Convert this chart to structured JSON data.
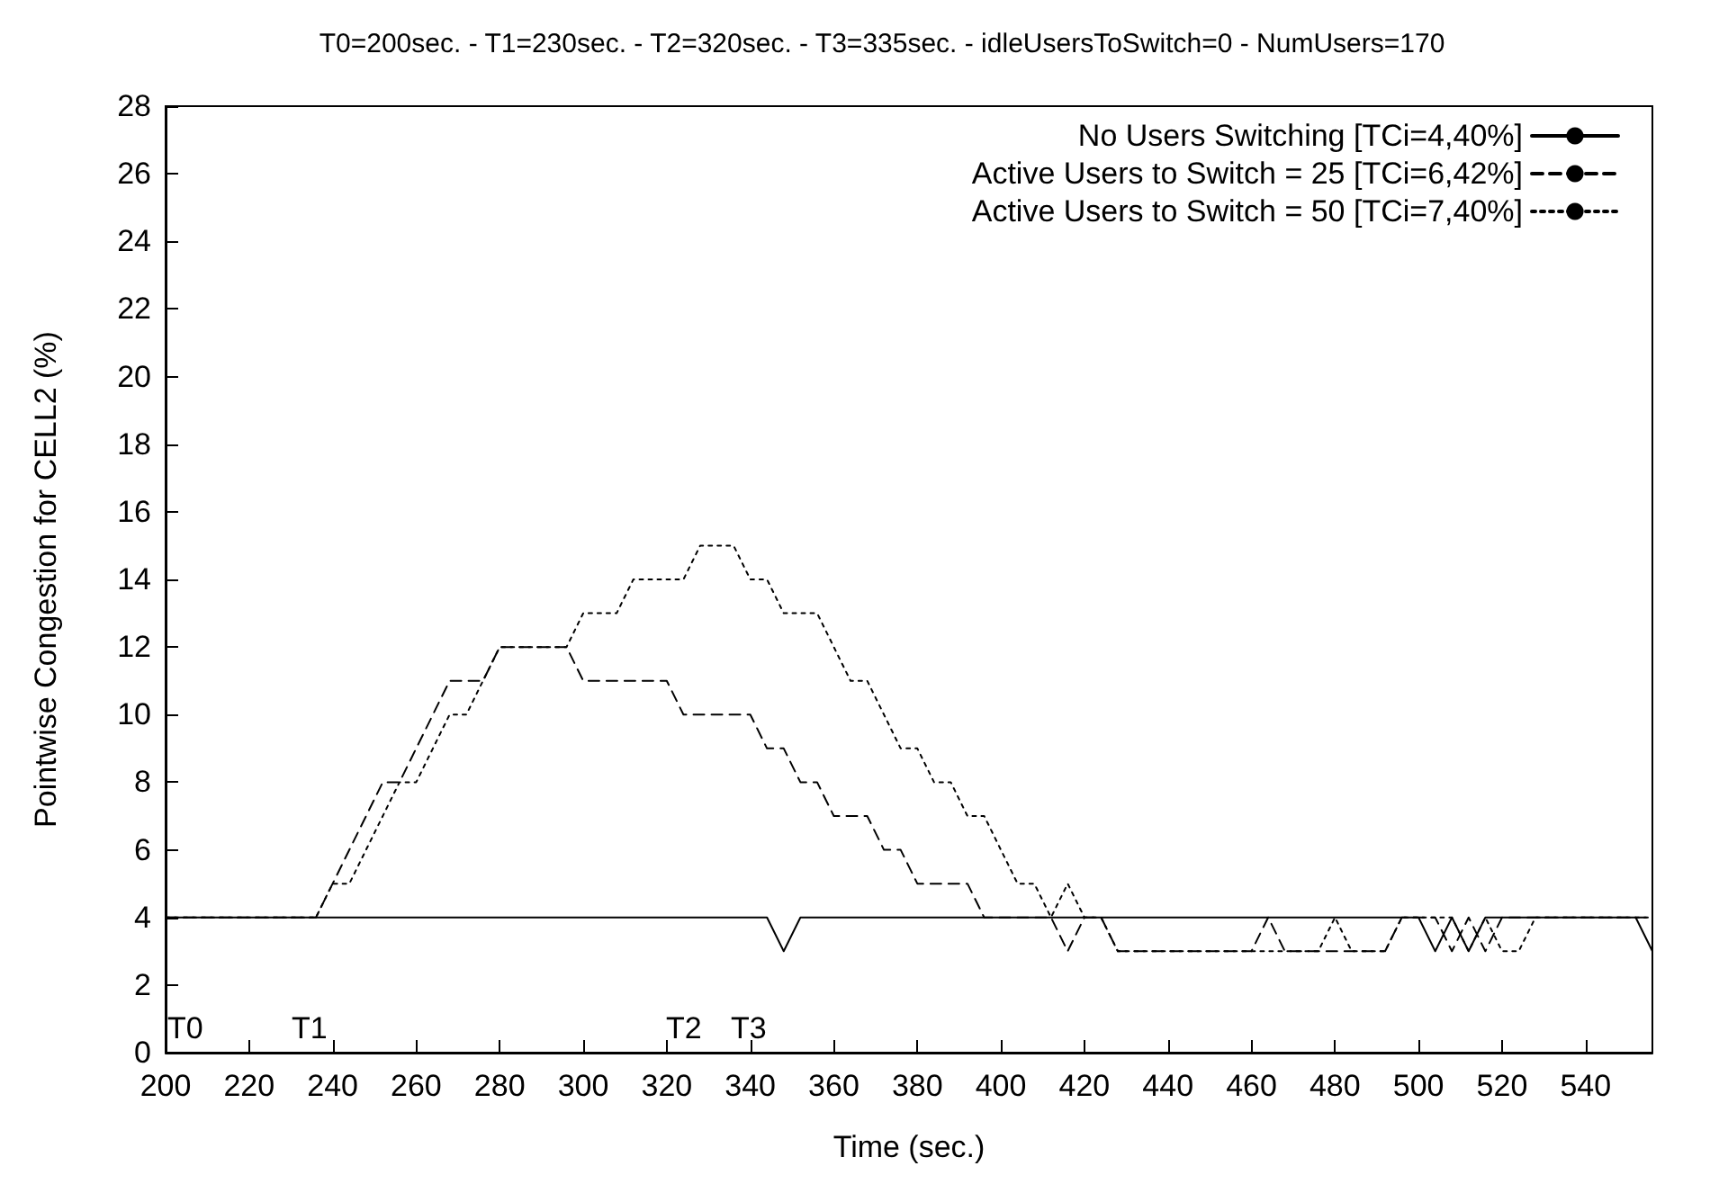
{
  "chart_data": {
    "type": "line",
    "title": "T0=200sec. - T1=230sec. - T2=320sec. - T3=335sec. - idleUsersToSwitch=0 - NumUsers=170",
    "xlabel": "Time (sec.)",
    "ylabel": "Pointwise Congestion for CELL2 (%)",
    "xlim": [
      200,
      556
    ],
    "xticks": [
      200,
      220,
      240,
      260,
      280,
      300,
      320,
      340,
      360,
      380,
      400,
      420,
      440,
      460,
      480,
      500,
      520,
      540
    ],
    "ylim": [
      0,
      28
    ],
    "yticks": [
      0,
      2,
      4,
      6,
      8,
      10,
      12,
      14,
      16,
      18,
      20,
      22,
      24,
      26,
      28
    ],
    "grid": false,
    "legend": "top right",
    "marker": "none",
    "annotations": [
      "T0",
      "T1",
      "T2",
      "T3"
    ],
    "series": [
      {
        "name": "No Users Switching [TCi=4,40%]",
        "color": "#000000",
        "line_style": "solid",
        "x": [
          200,
          344,
          348,
          352,
          500,
          504,
          508,
          512,
          516,
          552,
          556
        ],
        "values": [
          4,
          4,
          3,
          4,
          4,
          3,
          4,
          3,
          4,
          4,
          3
        ]
      },
      {
        "name": "Active Users to Switch = 25 [TCi=6,42%]",
        "color": "#000000",
        "line_style": "dashed",
        "x": [
          200,
          236,
          252,
          256,
          268,
          276,
          280,
          296,
          300,
          320,
          324,
          340,
          344,
          348,
          352,
          356,
          360,
          368,
          372,
          376,
          380,
          392,
          396,
          412,
          416,
          420,
          424,
          428,
          460,
          464,
          468,
          492,
          496,
          504,
          508,
          512,
          516,
          520,
          556
        ],
        "values": [
          4,
          4,
          8,
          8,
          11,
          11,
          12,
          12,
          11,
          11,
          10,
          10,
          9,
          9,
          8,
          8,
          7,
          7,
          6,
          6,
          5,
          5,
          4,
          4,
          3,
          4,
          4,
          3,
          3,
          4,
          3,
          3,
          4,
          4,
          3,
          4,
          3,
          4,
          4
        ]
      },
      {
        "name": "Active Users to Switch = 50 [TCi=7,40%]",
        "color": "#000000",
        "line_style": "dotted",
        "x": [
          200,
          236,
          240,
          244,
          256,
          260,
          268,
          272,
          280,
          296,
          300,
          308,
          312,
          324,
          328,
          336,
          340,
          344,
          348,
          356,
          360,
          364,
          368,
          372,
          376,
          380,
          384,
          388,
          392,
          396,
          400,
          404,
          408,
          412,
          416,
          420,
          424,
          428,
          476,
          480,
          484,
          492,
          496,
          508,
          512,
          516,
          520,
          524,
          528,
          556
        ],
        "values": [
          4,
          4,
          5,
          5,
          8,
          8,
          10,
          10,
          12,
          12,
          13,
          13,
          14,
          14,
          15,
          15,
          14,
          14,
          13,
          13,
          12,
          11,
          11,
          10,
          9,
          9,
          8,
          8,
          7,
          7,
          6,
          5,
          5,
          4,
          5,
          4,
          4,
          3,
          3,
          4,
          3,
          3,
          4,
          4,
          3,
          4,
          3,
          3,
          4,
          4
        ]
      }
    ]
  }
}
